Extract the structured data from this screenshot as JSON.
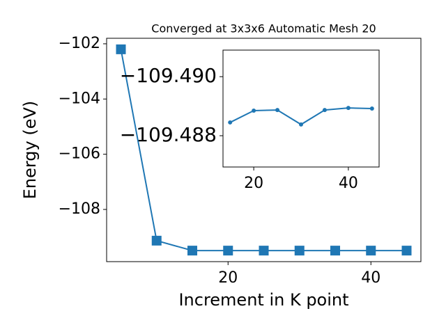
{
  "chart_data": [
    {
      "type": "line",
      "title": "Converged at 3x3x6 Automatic Mesh 20",
      "xlabel": "Increment in K point",
      "ylabel": "Energy (eV)",
      "marker": "square",
      "x": [
        5,
        10,
        15,
        20,
        25,
        30,
        35,
        40,
        45
      ],
      "series": [
        {
          "color": "#1f77b4",
          "values": [
            -102.2,
            -109.13,
            -109.49,
            -109.49,
            -109.49,
            -109.49,
            -109.49,
            -109.49,
            -109.49
          ]
        }
      ],
      "xlim": [
        3,
        47
      ],
      "xticks": [
        20,
        40
      ],
      "ylim": [
        -109.89,
        -101.8
      ],
      "yticks": [
        {
          "value": -108,
          "label": "−108"
        },
        {
          "value": -106,
          "label": "−106"
        },
        {
          "value": -104,
          "label": "−104"
        },
        {
          "value": -102,
          "label": "−102"
        }
      ]
    },
    {
      "type": "line",
      "marker": "circle",
      "x": [
        15,
        20,
        25,
        30,
        35,
        40,
        45
      ],
      "series": [
        {
          "color": "#1f77b4",
          "values": [
            -109.48845,
            -109.48885,
            -109.48887,
            -109.48838,
            -109.48887,
            -109.48894,
            -109.48892
          ]
        }
      ],
      "xlim": [
        13.5,
        46.5
      ],
      "xticks": [
        20,
        40
      ],
      "ylim": [
        -109.48694,
        -109.4909
      ],
      "yticks": [
        {
          "value": -109.488,
          "label": "−109.488"
        },
        {
          "value": -109.49,
          "label": "−109.490"
        }
      ]
    }
  ]
}
